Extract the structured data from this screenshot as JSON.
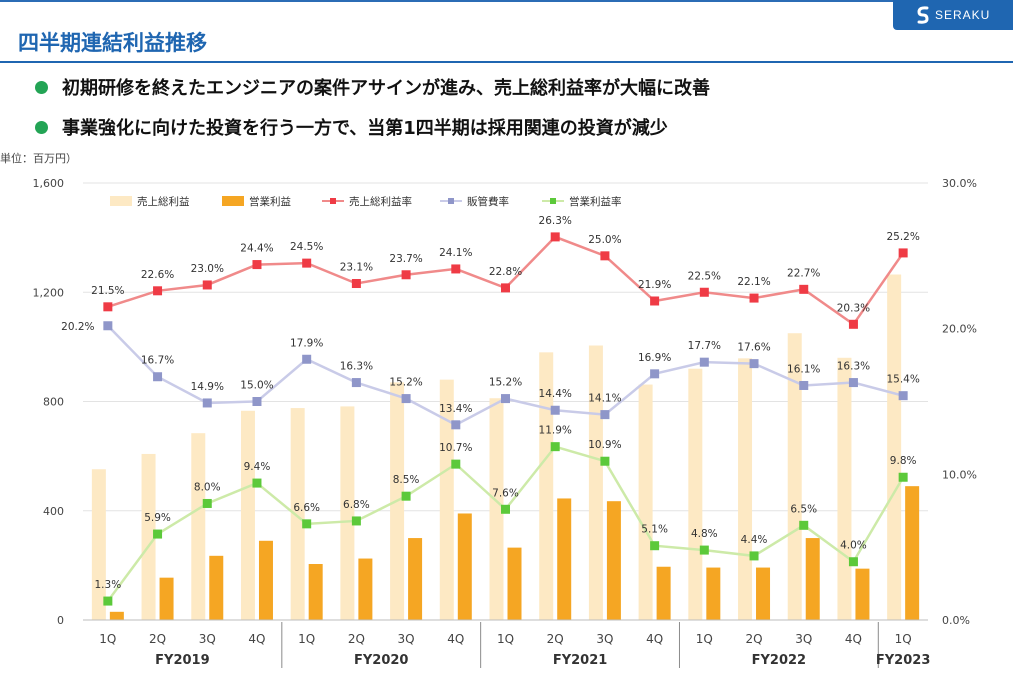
{
  "header": {
    "title": "四半期連結利益推移",
    "logo_text": "SERAKU",
    "bullets": [
      "初期研修を終えたエンジニアの案件アサインが進み、売上総利益率が大幅に改善",
      "事業強化に向けた投資を行う一方で、当第1四半期は採用関連の投資が減少"
    ]
  },
  "chart_data": {
    "type": "bar",
    "unit_label": "単位：百万円）",
    "categories": [
      "1Q",
      "2Q",
      "3Q",
      "4Q",
      "1Q",
      "2Q",
      "3Q",
      "4Q",
      "1Q",
      "2Q",
      "3Q",
      "4Q",
      "1Q",
      "2Q",
      "3Q",
      "4Q",
      "1Q"
    ],
    "fiscal_years": [
      {
        "label": "FY2019",
        "start": 0,
        "end": 3
      },
      {
        "label": "FY2020",
        "start": 4,
        "end": 7
      },
      {
        "label": "FY2021",
        "start": 8,
        "end": 11
      },
      {
        "label": "FY2022",
        "start": 12,
        "end": 15
      },
      {
        "label": "FY2023",
        "start": 16,
        "end": 16
      }
    ],
    "y_left": {
      "min": 0,
      "max": 1600,
      "ticks": [
        0,
        400,
        800,
        1200,
        1600
      ],
      "tick_labels": [
        "0",
        "400",
        "800",
        "1,200",
        "1,600"
      ]
    },
    "y_right": {
      "min": 0,
      "max": 30,
      "ticks": [
        0,
        10,
        20,
        30
      ],
      "tick_labels": [
        "0.0%",
        "10.0%",
        "20.0%",
        "30.0%"
      ]
    },
    "legend": [
      "売上総利益",
      "営業利益",
      "売上総利益率",
      "販管費率",
      "営業利益率"
    ],
    "series": [
      {
        "name": "売上総利益",
        "type": "bar",
        "axis": "left",
        "color": "#fde9c4",
        "values": [
          552,
          608,
          684,
          766,
          776,
          782,
          870,
          880,
          812,
          980,
          1005,
          862,
          920,
          958,
          1050,
          960,
          1265
        ]
      },
      {
        "name": "営業利益",
        "type": "bar",
        "axis": "left",
        "color": "#f5a623",
        "values": [
          30,
          155,
          235,
          290,
          205,
          225,
          300,
          390,
          265,
          445,
          435,
          195,
          192,
          192,
          300,
          188,
          490
        ]
      },
      {
        "name": "売上総利益率",
        "type": "line",
        "axis": "right",
        "color": "#f08a8a",
        "marker_color": "#ef3b45",
        "values": [
          21.5,
          22.6,
          23.0,
          24.4,
          24.5,
          23.1,
          23.7,
          24.1,
          22.8,
          26.3,
          25.0,
          21.9,
          22.5,
          22.1,
          22.7,
          20.3,
          25.2
        ],
        "labels": [
          "21.5%",
          "22.6%",
          "23.0%",
          "24.4%",
          "24.5%",
          "23.1%",
          "23.7%",
          "24.1%",
          "22.8%",
          "26.3%",
          "25.0%",
          "21.9%",
          "22.5%",
          "22.1%",
          "22.7%",
          "20.3%",
          "25.2%"
        ]
      },
      {
        "name": "販管費率",
        "type": "line",
        "axis": "right",
        "color": "#c9cbe8",
        "marker_color": "#8f96c9",
        "values": [
          20.2,
          16.7,
          14.9,
          15.0,
          17.9,
          16.3,
          15.2,
          13.4,
          15.2,
          14.4,
          14.1,
          16.9,
          17.7,
          17.6,
          16.1,
          16.3,
          15.4
        ],
        "labels": [
          "20.2%",
          "16.7%",
          "14.9%",
          "15.0%",
          "17.9%",
          "16.3%",
          "15.2%",
          "13.4%",
          "15.2%",
          "14.4%",
          "14.1%",
          "16.9%",
          "17.7%",
          "17.6%",
          "16.1%",
          "16.3%",
          "15.4%"
        ]
      },
      {
        "name": "営業利益率",
        "type": "line",
        "axis": "right",
        "color": "#cdeaa8",
        "marker_color": "#5cc93a",
        "values": [
          1.3,
          5.9,
          8.0,
          9.4,
          6.6,
          6.8,
          8.5,
          10.7,
          7.6,
          11.9,
          10.9,
          5.1,
          4.8,
          4.4,
          6.5,
          4.0,
          9.8
        ],
        "labels": [
          "1.3%",
          "5.9%",
          "8.0%",
          "9.4%",
          "6.6%",
          "6.8%",
          "8.5%",
          "10.7%",
          "7.6%",
          "11.9%",
          "10.9%",
          "5.1%",
          "4.8%",
          "4.4%",
          "6.5%",
          "4.0%",
          "9.8%"
        ]
      }
    ],
    "grid": true,
    "legend_position": "top"
  }
}
